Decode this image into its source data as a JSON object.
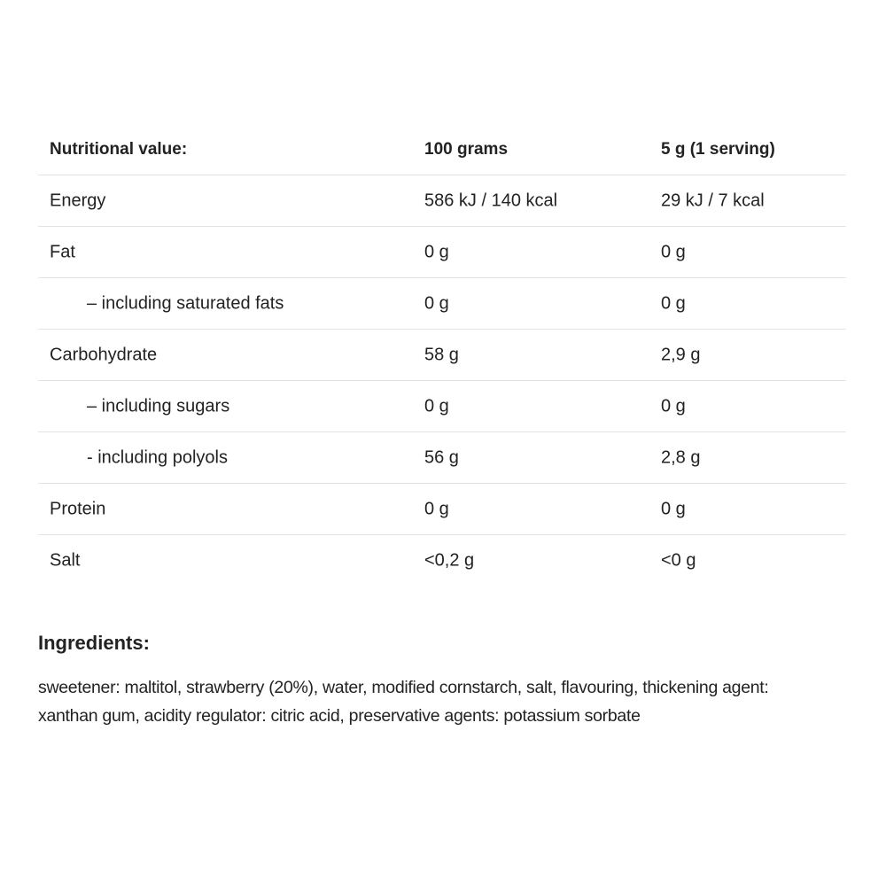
{
  "table": {
    "headers": [
      "Nutritional value:",
      "100 grams",
      "5 g (1 serving)"
    ],
    "rows": [
      {
        "label": "Energy",
        "per100": "586 kJ / 140 kcal",
        "perServing": "29 kJ / 7 kcal",
        "indent": false
      },
      {
        "label": "Fat",
        "per100": "0 g",
        "perServing": "0 g",
        "indent": false
      },
      {
        "label": "– including saturated fats",
        "per100": "0 g",
        "perServing": "0 g",
        "indent": true
      },
      {
        "label": "Carbohydrate",
        "per100": "58 g",
        "perServing": "2,9 g",
        "indent": false
      },
      {
        "label": "– including sugars",
        "per100": "0 g",
        "perServing": "0 g",
        "indent": true
      },
      {
        "label": "- including polyols",
        "per100": "56 g",
        "perServing": "2,8 g",
        "indent": true
      },
      {
        "label": "Protein",
        "per100": "0 g",
        "perServing": "0 g",
        "indent": false
      },
      {
        "label": "Salt",
        "per100": "<0,2 g",
        "perServing": "<0 g",
        "indent": false
      }
    ]
  },
  "ingredients": {
    "title": "Ingredients:",
    "text": "sweetener: maltitol, strawberry (20%), water, modified cornstarch, salt, flavouring, thickening agent: xanthan gum, acidity regulator: citric acid, preservative agents: potassium sorbate"
  }
}
